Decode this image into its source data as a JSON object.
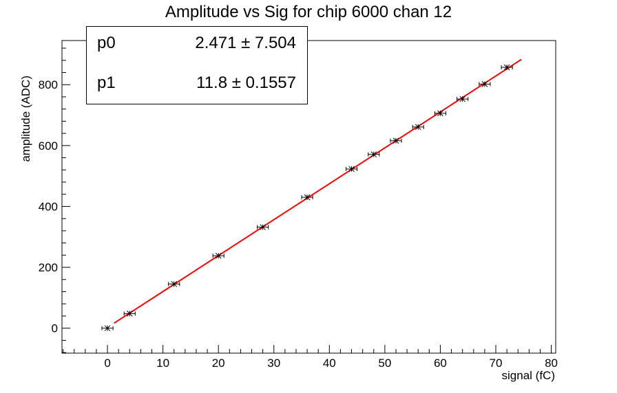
{
  "chart_data": {
    "type": "scatter",
    "title": "Amplitude vs Sig for chip 6000 chan 12",
    "xlabel": "signal (fC)",
    "ylabel": "amplitude (ADC)",
    "xlim": [
      -8.2,
      80.8
    ],
    "ylim": [
      -82,
      945
    ],
    "xticks": [
      0,
      10,
      20,
      30,
      40,
      50,
      60,
      70,
      80
    ],
    "yticks": [
      0,
      200,
      400,
      600,
      800
    ],
    "grid": false,
    "series": [
      {
        "name": "",
        "marker": "star",
        "x": [
          0,
          4,
          12,
          20,
          28,
          36,
          44,
          48,
          52,
          56,
          60,
          64,
          68,
          72
        ],
        "y": [
          0,
          48,
          145,
          238,
          332,
          430,
          523,
          571,
          616,
          661,
          706,
          753,
          802,
          857
        ],
        "x_error": 1,
        "color": "#000000"
      }
    ],
    "fit": {
      "type": "linear",
      "p0": 2.471,
      "p1": 11.8,
      "x_range": [
        1.2,
        74.6
      ],
      "color": "#ff0000"
    },
    "stats_box": [
      {
        "name": "p0",
        "value": "2.471",
        "error": "7.504"
      },
      {
        "name": "p1",
        "value": "11.8",
        "error": "0.1557"
      }
    ]
  }
}
